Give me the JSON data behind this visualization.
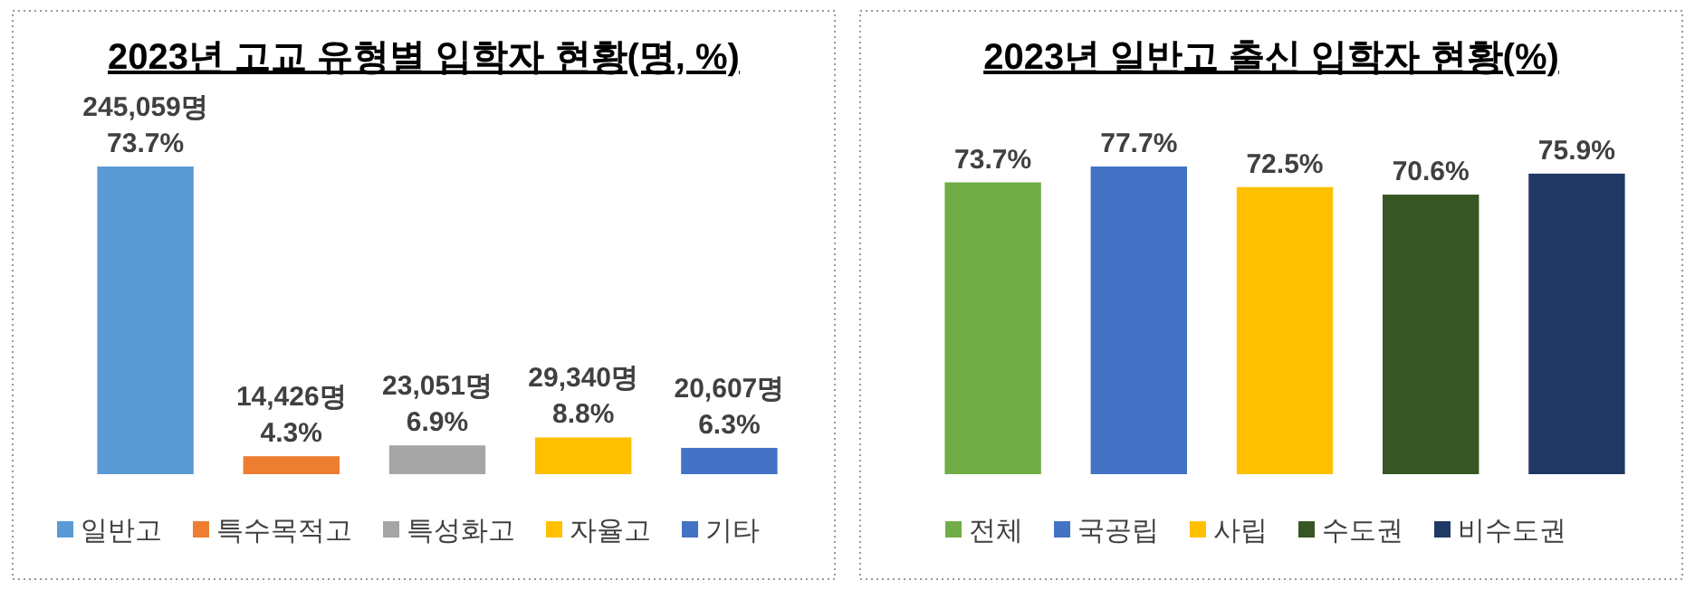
{
  "chart_data": [
    {
      "type": "bar",
      "title": "2023년 고교 유형별 입학자 현황(명, %)",
      "categories": [
        null,
        null,
        null,
        null,
        null
      ],
      "stacked": true,
      "series": [
        {
          "name": "일반고",
          "color": "#5b9bd5",
          "values": [
            73.7,
            null,
            null,
            null,
            null
          ],
          "value_labels": [
            "245,059명\n73.7%",
            null,
            null,
            null,
            null
          ]
        },
        {
          "name": "특수목적고",
          "color": "#ed7d31",
          "values": [
            null,
            4.3,
            null,
            null,
            null
          ],
          "value_labels": [
            null,
            "14,426명\n4.3%",
            null,
            null,
            null
          ]
        },
        {
          "name": "특성화고",
          "color": "#a5a5a5",
          "values": [
            null,
            null,
            6.9,
            null,
            null
          ],
          "value_labels": [
            null,
            null,
            "23,051명\n6.9%",
            null,
            null
          ]
        },
        {
          "name": "자율고",
          "color": "#ffc000",
          "values": [
            null,
            null,
            null,
            8.8,
            null
          ],
          "value_labels": [
            null,
            null,
            null,
            "29,340명\n8.8%",
            null
          ]
        },
        {
          "name": "기타",
          "color": "#4472c4",
          "values": [
            null,
            null,
            null,
            null,
            6.3
          ],
          "value_labels": [
            null,
            null,
            null,
            null,
            "20,607명\n6.3%"
          ]
        }
      ],
      "legend": "bottom"
    },
    {
      "type": "bar",
      "title": "2023년 일반고 출신 입학자 현황(%)",
      "categories": [
        null,
        null,
        null,
        null,
        null
      ],
      "stacked": true,
      "series": [
        {
          "name": "전체",
          "color": "#70ad47",
          "values": [
            73.7,
            null,
            null,
            null,
            null
          ],
          "value_labels": [
            "73.7%",
            null,
            null,
            null,
            null
          ]
        },
        {
          "name": "국공립",
          "color": "#4472c4",
          "values": [
            null,
            77.7,
            null,
            null,
            null
          ],
          "value_labels": [
            null,
            "77.7%",
            null,
            null,
            null
          ]
        },
        {
          "name": "사립",
          "color": "#ffc000",
          "values": [
            null,
            null,
            72.5,
            null,
            null
          ],
          "value_labels": [
            null,
            null,
            "72.5%",
            null,
            null
          ]
        },
        {
          "name": "수도권",
          "color": "#375623",
          "values": [
            null,
            null,
            null,
            70.6,
            null
          ],
          "value_labels": [
            null,
            null,
            null,
            "70.6%",
            null
          ]
        },
        {
          "name": "비수도권",
          "color": "#203864",
          "values": [
            null,
            null,
            null,
            null,
            75.9
          ],
          "value_labels": [
            null,
            null,
            null,
            null,
            "75.9%"
          ]
        }
      ],
      "legend": "bottom"
    }
  ]
}
